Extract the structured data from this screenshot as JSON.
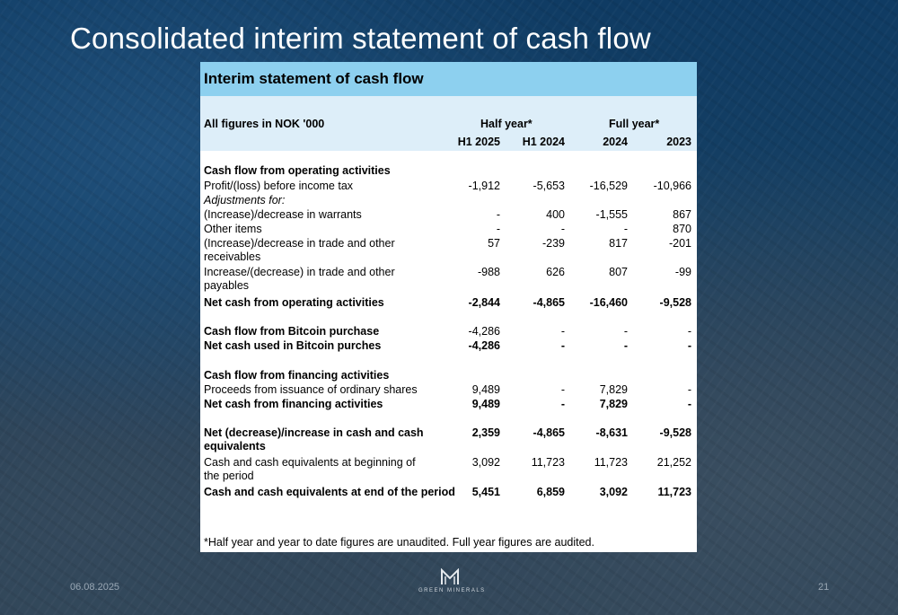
{
  "slide": {
    "title": "Consolidated interim statement of cash flow",
    "date": "06.08.2025",
    "page_number": "21",
    "logo_text": "GREEN MINERALS"
  },
  "table": {
    "title": "Interim statement of cash flow",
    "units_label": "All figures in NOK '000",
    "group_half": "Half year*",
    "group_full": "Full year*",
    "columns": [
      "H1 2025",
      "H1 2024",
      "2024",
      "2023"
    ],
    "footnote": "*Half year and year to date figures are unaudited. Full year figures are audited.",
    "rows": [
      {
        "label": "Cash flow from operating activities",
        "style": "bold",
        "values": [
          "",
          "",
          "",
          ""
        ]
      },
      {
        "label": "Profit/(loss) before income tax",
        "style": "",
        "values": [
          "-1,912",
          "-5,653",
          "-16,529",
          "-10,966"
        ]
      },
      {
        "label": "Adjustments for:",
        "style": "italic",
        "values": [
          "",
          "",
          "",
          ""
        ]
      },
      {
        "label": "(Increase)/decrease in warrants",
        "style": "",
        "values": [
          "-",
          "400",
          "-1,555",
          "867"
        ]
      },
      {
        "label": "Other items",
        "style": "",
        "values": [
          "-",
          "-",
          "-",
          "870"
        ]
      },
      {
        "label": "(Increase)/decrease in trade and other receivables",
        "style": "",
        "values": [
          "57",
          "-239",
          "817",
          "-201"
        ]
      },
      {
        "label": "Increase/(decrease) in trade and other payables",
        "style": "",
        "values": [
          "-988",
          "626",
          "807",
          "-99"
        ]
      },
      {
        "label": "Net cash from operating activities",
        "style": "bold",
        "values": [
          "-2,844",
          "-4,865",
          "-16,460",
          "-9,528"
        ]
      },
      {
        "label": "Cash flow from Bitcoin purchase",
        "style": "bold",
        "values": [
          "-4,286",
          "-",
          "-",
          "-"
        ]
      },
      {
        "label": "Net cash used in Bitcoin purches",
        "style": "bold",
        "values": [
          "-4,286",
          "-",
          "-",
          "-"
        ]
      },
      {
        "label": "Cash flow from financing activities",
        "style": "bold",
        "values": [
          "",
          "",
          "",
          ""
        ]
      },
      {
        "label": "Proceeds from issuance of ordinary shares",
        "style": "",
        "values": [
          "9,489",
          "-",
          "7,829",
          "-"
        ]
      },
      {
        "label": "Net cash from financing activities",
        "style": "bold",
        "values": [
          "9,489",
          "-",
          "7,829",
          "-"
        ]
      },
      {
        "label": "Net (decrease)/increase in cash and cash equivalents",
        "style": "bold",
        "values": [
          "2,359",
          "-4,865",
          "-8,631",
          "-9,528"
        ]
      },
      {
        "label": "Cash and cash equivalents at beginning of the period",
        "style": "",
        "values": [
          "3,092",
          "11,723",
          "11,723",
          "21,252"
        ]
      },
      {
        "label": "Cash and cash equivalents at end of the period",
        "style": "bold",
        "values": [
          "5,451",
          "6,859",
          "3,092",
          "11,723"
        ]
      }
    ]
  }
}
